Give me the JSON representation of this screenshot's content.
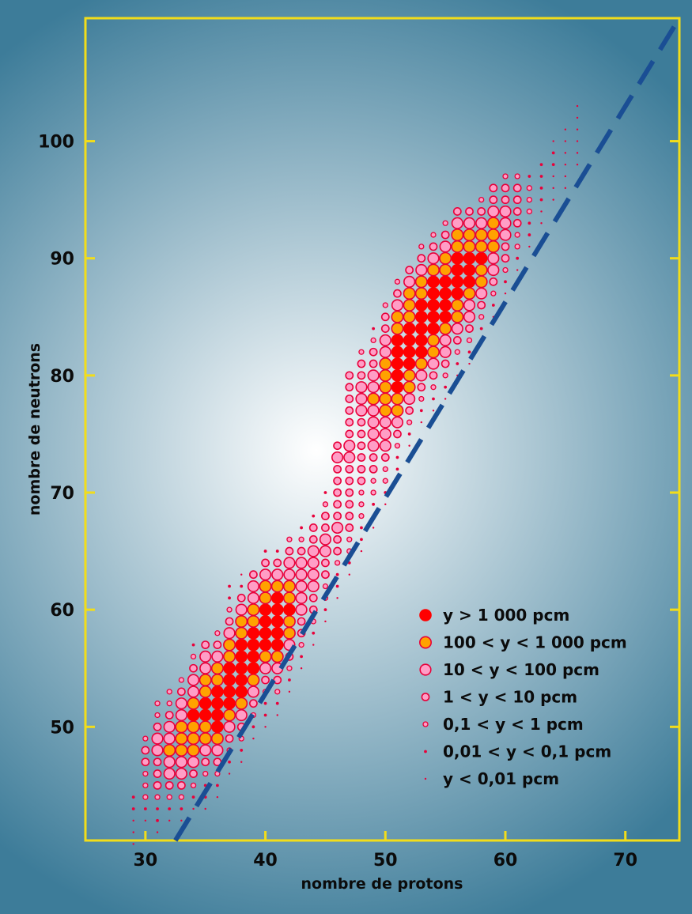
{
  "colors": {
    "background": "#3d7c99",
    "frame": "#f2dd1a",
    "glow_center": "#ffffff",
    "glow_edge": "#3d7c99",
    "high_yield": "#ff0000",
    "mid_yield": "#ffa200",
    "low_yield": "#ff9ec6",
    "marker_edge": "#e8003a",
    "stability_line": "#1a4e94"
  },
  "chart_data": {
    "type": "scatter",
    "title": "",
    "xlabel": "nombre de protons",
    "ylabel": "nombre de neutrons",
    "xlim": [
      25,
      74.5
    ],
    "ylim": [
      40.3,
      110.5
    ],
    "xticks": [
      30,
      40,
      50,
      60,
      70
    ],
    "yticks": [
      50,
      60,
      70,
      80,
      90,
      100
    ],
    "grid": false,
    "legend_position": "bottom-right",
    "reference_line": {
      "style": "dashed",
      "points": [
        [
          32.5,
          40.3
        ],
        [
          74.5,
          110.5
        ]
      ]
    },
    "series": [
      {
        "name": "y > 1 000 pcm",
        "level": 6
      },
      {
        "name": "100 < y < 1 000 pcm",
        "level": 5
      },
      {
        "name": "10 < y < 100 pcm",
        "level": 4
      },
      {
        "name": "1 < y < 10 pcm",
        "level": 3
      },
      {
        "name": "0,1 < y < 1 pcm",
        "level": 2
      },
      {
        "name": "0,01 < y < 0,1 pcm",
        "level": 1
      },
      {
        "name": "y < 0,01 pcm",
        "level": 0
      }
    ],
    "rows": [
      {
        "z": 29,
        "n0": 40,
        "levels": [
          0,
          0,
          0,
          1,
          1
        ]
      },
      {
        "z": 30,
        "n0": 41,
        "levels": [
          0,
          0,
          1,
          2,
          2,
          2,
          3,
          3,
          2
        ]
      },
      {
        "z": 31,
        "n0": 41,
        "levels": [
          0,
          1,
          1,
          2,
          3,
          3,
          3,
          4,
          4,
          3,
          2,
          2
        ]
      },
      {
        "z": 32,
        "n0": 42,
        "levels": [
          0,
          1,
          2,
          3,
          4,
          4,
          5,
          4,
          4,
          3,
          2,
          2
        ]
      },
      {
        "z": 33,
        "n0": 42,
        "levels": [
          0,
          1,
          2,
          3,
          4,
          4,
          5,
          5,
          5,
          4,
          4,
          3,
          2
        ]
      },
      {
        "z": 34,
        "n0": 43,
        "levels": [
          0,
          1,
          2,
          3,
          4,
          5,
          5,
          5,
          6,
          5,
          4,
          4,
          3,
          2,
          1
        ]
      },
      {
        "z": 35,
        "n0": 43,
        "levels": [
          0,
          1,
          1,
          2,
          3,
          4,
          5,
          5,
          6,
          6,
          5,
          5,
          4,
          4,
          3
        ]
      },
      {
        "z": 36,
        "n0": 44,
        "levels": [
          0,
          1,
          2,
          3,
          4,
          5,
          6,
          6,
          6,
          6,
          5,
          5,
          4,
          3,
          2
        ]
      },
      {
        "z": 37,
        "n0": 46,
        "levels": [
          0,
          1,
          2,
          3,
          4,
          5,
          6,
          6,
          6,
          6,
          5,
          5,
          4,
          3,
          2,
          1,
          1
        ]
      },
      {
        "z": 38,
        "n0": 47,
        "levels": [
          0,
          1,
          2,
          3,
          4,
          5,
          6,
          6,
          6,
          6,
          6,
          5,
          5,
          4,
          3,
          1,
          0
        ]
      },
      {
        "z": 39,
        "n0": 49,
        "levels": [
          0,
          1,
          2,
          3,
          4,
          5,
          6,
          6,
          6,
          6,
          5,
          5,
          4,
          4,
          3
        ]
      },
      {
        "z": 40,
        "n0": 50,
        "levels": [
          0,
          1,
          1,
          2,
          3,
          4,
          5,
          6,
          6,
          6,
          6,
          5,
          5,
          4,
          3,
          1
        ]
      },
      {
        "z": 41,
        "n0": 51,
        "levels": [
          0,
          1,
          2,
          3,
          4,
          5,
          6,
          6,
          6,
          6,
          6,
          5,
          4,
          3,
          1
        ]
      },
      {
        "z": 42,
        "n0": 53,
        "levels": [
          0,
          1,
          2,
          3,
          4,
          5,
          5,
          6,
          5,
          5,
          4,
          4,
          3,
          2
        ]
      },
      {
        "z": 43,
        "n0": 55,
        "levels": [
          0,
          1,
          2,
          3,
          3,
          4,
          4,
          4,
          4,
          4,
          3,
          2,
          1
        ]
      },
      {
        "z": 44,
        "n0": 57,
        "levels": [
          0,
          1,
          2,
          3,
          3,
          4,
          4,
          4,
          4,
          3,
          3,
          1
        ]
      },
      {
        "z": 45,
        "n0": 59,
        "levels": [
          0,
          1,
          2,
          2,
          3,
          3,
          4,
          4,
          3,
          3,
          2,
          1
        ]
      },
      {
        "z": 46,
        "n0": 61,
        "levels": [
          0,
          1,
          1,
          2,
          3,
          3,
          4,
          3,
          3,
          3,
          3,
          3,
          4,
          3
        ]
      },
      {
        "z": 47,
        "n0": 63,
        "levels": [
          0,
          1,
          2,
          2,
          3,
          3,
          3,
          3,
          3,
          3,
          4,
          4,
          3,
          3,
          3,
          3,
          3,
          3
        ]
      },
      {
        "z": 48,
        "n0": 65,
        "levels": [
          0,
          1,
          1,
          2,
          2,
          2,
          3,
          3,
          3,
          3,
          3,
          3,
          4,
          4,
          4,
          3,
          3,
          2
        ]
      },
      {
        "z": 49,
        "n0": 67,
        "levels": [
          0,
          1,
          1,
          2,
          2,
          3,
          3,
          4,
          4,
          4,
          4,
          5,
          4,
          4,
          3,
          3,
          2,
          1
        ]
      },
      {
        "z": 50,
        "n0": 69,
        "levels": [
          0,
          1,
          2,
          2,
          3,
          4,
          4,
          4,
          5,
          5,
          5,
          5,
          5,
          4,
          4,
          3,
          3,
          2
        ]
      },
      {
        "z": 51,
        "n0": 72,
        "levels": [
          1,
          1,
          2,
          3,
          4,
          5,
          5,
          6,
          6,
          6,
          6,
          6,
          5,
          5,
          4,
          3,
          2
        ]
      },
      {
        "z": 52,
        "n0": 74,
        "levels": [
          0,
          1,
          2,
          3,
          4,
          5,
          5,
          6,
          6,
          6,
          6,
          5,
          5,
          5,
          4,
          3
        ]
      },
      {
        "z": 53,
        "n0": 76,
        "levels": [
          0,
          1,
          2,
          3,
          4,
          5,
          6,
          6,
          6,
          6,
          6,
          5,
          5,
          4,
          3,
          2
        ]
      },
      {
        "z": 54,
        "n0": 77,
        "levels": [
          0,
          1,
          2,
          3,
          4,
          5,
          5,
          6,
          6,
          6,
          6,
          6,
          5,
          4,
          3,
          2
        ]
      },
      {
        "z": 55,
        "n0": 78,
        "levels": [
          0,
          1,
          2,
          3,
          4,
          4,
          5,
          6,
          6,
          6,
          6,
          5,
          5,
          4,
          3,
          2
        ]
      },
      {
        "z": 56,
        "n0": 80,
        "levels": [
          0,
          1,
          2,
          3,
          4,
          5,
          5,
          6,
          6,
          6,
          6,
          5,
          5,
          4,
          3
        ]
      },
      {
        "z": 57,
        "n0": 81,
        "levels": [
          0,
          1,
          2,
          3,
          4,
          4,
          5,
          6,
          6,
          6,
          5,
          5,
          4,
          3
        ]
      },
      {
        "z": 58,
        "n0": 83,
        "levels": [
          0,
          1,
          2,
          3,
          4,
          5,
          5,
          6,
          5,
          5,
          4,
          3,
          2
        ]
      },
      {
        "z": 59,
        "n0": 85,
        "levels": [
          0,
          1,
          2,
          3,
          4,
          4,
          5,
          5,
          5,
          4,
          3,
          3
        ]
      },
      {
        "z": 60,
        "n0": 87,
        "levels": [
          0,
          1,
          2,
          3,
          3,
          4,
          4,
          4,
          3,
          3,
          2
        ]
      },
      {
        "z": 61,
        "n0": 89,
        "levels": [
          0,
          1,
          2,
          2,
          3,
          3,
          3,
          3,
          2
        ]
      },
      {
        "z": 62,
        "n0": 91,
        "levels": [
          0,
          1,
          1,
          2,
          2,
          2,
          1
        ]
      },
      {
        "z": 63,
        "n0": 93,
        "levels": [
          0,
          0,
          1,
          1,
          1,
          1
        ]
      },
      {
        "z": 64,
        "n0": 95,
        "levels": [
          0,
          0,
          0,
          1,
          1,
          0
        ]
      },
      {
        "z": 65,
        "n0": 96,
        "levels": [
          0,
          0,
          0,
          0,
          0,
          0
        ]
      },
      {
        "z": 66,
        "n0": 98,
        "levels": [
          0,
          0,
          0,
          0,
          0,
          0
        ]
      }
    ]
  }
}
